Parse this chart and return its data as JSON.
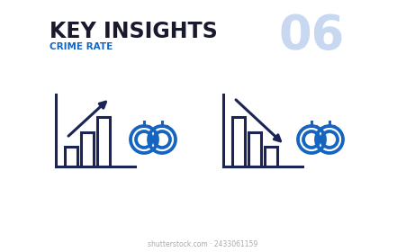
{
  "title": "KEY INSIGHTS",
  "subtitle": "CRIME RATE",
  "number": "06",
  "bg_color": "#ffffff",
  "title_color": "#1a1a2e",
  "subtitle_color": "#1565c0",
  "number_color": "#c8d8f0",
  "dark_blue": "#1a2456",
  "bright_blue": "#1565c0",
  "watermark": "shutterstock.com · 2433061159",
  "watermark_color": "#aaaaaa"
}
